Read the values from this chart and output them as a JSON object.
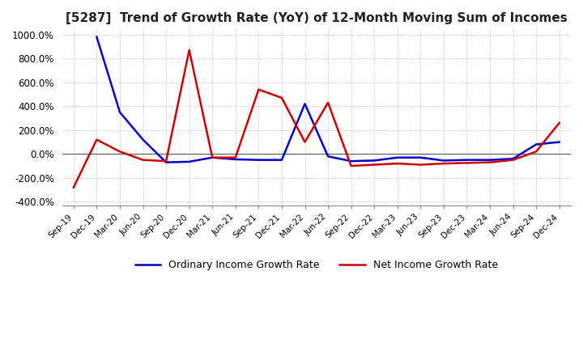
{
  "title": "[5287]  Trend of Growth Rate (YoY) of 12-Month Moving Sum of Incomes",
  "title_fontsize": 11,
  "ylim": [
    -430,
    1050
  ],
  "yticks": [
    -400,
    -200,
    0,
    200,
    400,
    600,
    800,
    1000
  ],
  "ytick_labels": [
    "-400.0%",
    "-200.0%",
    "0.0%",
    "200.0%",
    "400.0%",
    "600.0%",
    "800.0%",
    "1000.0%"
  ],
  "grid_color": "#aaaaaa",
  "background_color": "#ffffff",
  "legend_labels": [
    "Ordinary Income Growth Rate",
    "Net Income Growth Rate"
  ],
  "legend_colors": [
    "#0000cc",
    "#cc0000"
  ],
  "x_labels": [
    "Sep-19",
    "Dec-19",
    "Mar-20",
    "Jun-20",
    "Sep-20",
    "Dec-20",
    "Mar-21",
    "Jun-21",
    "Sep-21",
    "Dec-21",
    "Mar-22",
    "Jun-22",
    "Sep-22",
    "Dec-22",
    "Mar-23",
    "Jun-23",
    "Sep-23",
    "Dec-23",
    "Mar-24",
    "Jun-24",
    "Sep-24",
    "Dec-24"
  ],
  "ordinary_income": [
    null,
    980,
    350,
    120,
    -70,
    -65,
    -30,
    -45,
    -50,
    -50,
    420,
    -20,
    -60,
    -55,
    -30,
    -30,
    -55,
    -50,
    -50,
    -40,
    80,
    100
  ],
  "net_income": [
    -280,
    120,
    20,
    -50,
    -60,
    870,
    -30,
    -30,
    540,
    470,
    100,
    430,
    -100,
    -90,
    -80,
    -90,
    -80,
    -75,
    -70,
    -50,
    20,
    260
  ]
}
